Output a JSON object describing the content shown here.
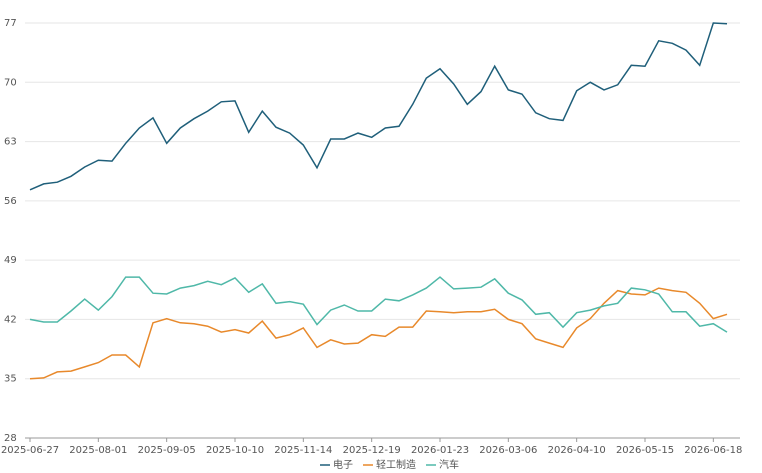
{
  "chart_data": {
    "type": "line",
    "categories": [
      "2025-06-27",
      null,
      null,
      null,
      null,
      "2025-08-01",
      null,
      null,
      null,
      null,
      "2025-09-05",
      null,
      null,
      null,
      null,
      "2025-10-10",
      null,
      null,
      null,
      null,
      "2025-11-14",
      null,
      null,
      null,
      null,
      "2025-12-19",
      null,
      null,
      null,
      null,
      "2026-01-23",
      null,
      null,
      null,
      null,
      "2026-03-06",
      null,
      null,
      null,
      null,
      "2026-04-10",
      null,
      null,
      null,
      null,
      "2026-05-15",
      null,
      null,
      null,
      null,
      "2026-06-18",
      null
    ],
    "series": [
      {
        "name": "电子",
        "color": "#1f5f7a",
        "values": [
          57.3,
          58.0,
          58.2,
          58.9,
          60.0,
          60.8,
          60.7,
          62.8,
          64.6,
          65.8,
          62.8,
          64.6,
          65.7,
          66.6,
          67.7,
          67.8,
          64.1,
          66.6,
          64.7,
          64.0,
          62.6,
          59.9,
          63.3,
          63.3,
          64.0,
          63.5,
          64.6,
          64.8,
          67.4,
          70.5,
          71.6,
          69.8,
          67.4,
          68.9,
          71.9,
          69.1,
          68.6,
          66.4,
          65.7,
          65.5,
          69.0,
          70.0,
          69.1,
          69.7,
          72.0,
          71.9,
          74.9,
          74.6,
          73.8,
          72.0,
          77.0,
          76.9
        ]
      },
      {
        "name": "轻工制造",
        "color": "#e8892b",
        "values": [
          35.0,
          35.1,
          35.8,
          35.9,
          36.4,
          36.9,
          37.8,
          37.8,
          36.4,
          41.6,
          42.1,
          41.6,
          41.5,
          41.2,
          40.5,
          40.8,
          40.4,
          41.8,
          39.8,
          40.2,
          41.0,
          38.7,
          39.6,
          39.1,
          39.2,
          40.2,
          40.0,
          41.1,
          41.1,
          43.0,
          42.9,
          42.8,
          42.9,
          42.9,
          43.2,
          42.0,
          41.5,
          39.7,
          39.2,
          38.7,
          41.0,
          42.1,
          43.9,
          45.4,
          45.0,
          44.9,
          45.7,
          45.4,
          45.2,
          43.9,
          42.1,
          42.6
        ]
      },
      {
        "name": "汽车",
        "color": "#4fb8a8",
        "values": [
          42.0,
          41.7,
          41.7,
          43.0,
          44.4,
          43.1,
          44.7,
          47.0,
          47.0,
          45.1,
          45.0,
          45.7,
          46.0,
          46.5,
          46.1,
          46.9,
          45.2,
          46.2,
          43.9,
          44.1,
          43.8,
          41.4,
          43.1,
          43.7,
          43.0,
          43.0,
          44.4,
          44.2,
          44.9,
          45.7,
          47.0,
          45.6,
          45.7,
          45.8,
          46.8,
          45.1,
          44.3,
          42.6,
          42.8,
          41.1,
          42.8,
          43.1,
          43.6,
          43.9,
          45.7,
          45.5,
          45.0,
          42.9,
          42.9,
          41.2,
          41.5,
          40.5
        ]
      }
    ],
    "ylim": [
      28,
      77
    ],
    "yticks": [
      28,
      35,
      42,
      49,
      56,
      63,
      70,
      77
    ],
    "grid": true,
    "legend": "bottom"
  }
}
